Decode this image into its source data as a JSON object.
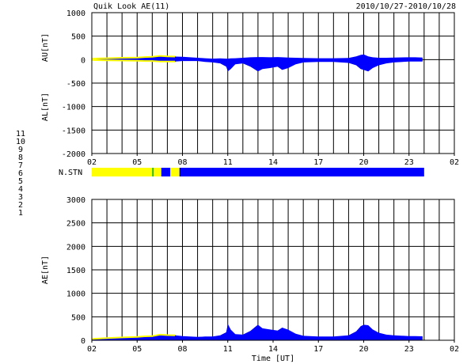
{
  "header": {
    "title": "Quik Look AE(11)",
    "date_range": "2010/10/27-2010/10/28"
  },
  "colors": {
    "foreground": "#000000",
    "background": "#ffffff",
    "fill": "#0000ff",
    "early_trace": "#ffff00",
    "stn_1": "#0000ff",
    "stn_5": "#ffff00",
    "stn_7": "#00c000"
  },
  "legend": {
    "items": [
      {
        "label": "11",
        "color": "#00e0e0"
      },
      {
        "label": "10",
        "color": "#ff00ff"
      },
      {
        "label": "9",
        "color": "#0000ff"
      },
      {
        "label": "8",
        "color": "#ffe060"
      },
      {
        "label": "7",
        "color": "#00c000"
      },
      {
        "label": "6",
        "color": "#ff0000"
      },
      {
        "label": "5",
        "color": "#c0c0c0"
      },
      {
        "label": "4",
        "color": "#808080"
      },
      {
        "label": "3",
        "color": "#008080"
      },
      {
        "label": "2",
        "color": "#800080"
      },
      {
        "label": "1",
        "color": "#0000a0"
      }
    ]
  },
  "chart_data": [
    {
      "type": "area",
      "name": "AU-AL",
      "ylabel_top": "AU[nT]",
      "ylabel_bottom": "AL[nT]",
      "ylim": [
        -2000,
        1000
      ],
      "ytick_values": [
        1000,
        500,
        0,
        -500,
        -1000,
        -1500,
        -2000
      ],
      "ytick_labels": [
        "1000",
        "500",
        "0",
        "-500",
        "-1000",
        "-1500",
        "-2000"
      ],
      "xlim": [
        2,
        26
      ],
      "xtick_labels": [
        "02",
        "05",
        "08",
        "11",
        "14",
        "17",
        "20",
        "23",
        "02"
      ],
      "x": [
        2.0,
        3.0,
        4.0,
        5.0,
        5.5,
        6.0,
        6.5,
        7.0,
        7.5,
        8.0,
        9.0,
        9.5,
        10.0,
        10.5,
        10.9,
        11.0,
        11.2,
        11.5,
        12.0,
        12.5,
        13.0,
        13.3,
        13.8,
        14.3,
        14.6,
        15.0,
        15.5,
        16.0,
        17.0,
        18.0,
        19.0,
        19.5,
        19.8,
        20.0,
        20.3,
        20.6,
        21.0,
        21.5,
        22.0,
        23.0,
        23.4,
        23.9
      ],
      "au": [
        20,
        30,
        40,
        45,
        55,
        60,
        80,
        70,
        65,
        60,
        40,
        30,
        20,
        25,
        20,
        20,
        25,
        30,
        40,
        50,
        55,
        55,
        50,
        55,
        50,
        45,
        40,
        35,
        30,
        30,
        35,
        70,
        100,
        110,
        70,
        50,
        40,
        40,
        45,
        50,
        50,
        45
      ],
      "al": [
        -10,
        -15,
        -20,
        -25,
        -30,
        -30,
        -40,
        -40,
        -40,
        -30,
        -30,
        -50,
        -60,
        -80,
        -150,
        -250,
        -200,
        -100,
        -80,
        -150,
        -250,
        -200,
        -180,
        -150,
        -220,
        -180,
        -100,
        -60,
        -50,
        -50,
        -70,
        -120,
        -200,
        -220,
        -250,
        -180,
        -120,
        -80,
        -60,
        -40,
        -40,
        -40
      ],
      "early_segment_end": 7.5
    },
    {
      "type": "area",
      "name": "AE",
      "ylabel": "AE[nT]",
      "xlabel": "Time [UT]",
      "ylim": [
        0,
        3000
      ],
      "ytick_values": [
        3000,
        2500,
        2000,
        1500,
        1000,
        500,
        0
      ],
      "ytick_labels": [
        "3000",
        "2500",
        "2000",
        "1500",
        "1000",
        "500",
        "0"
      ],
      "xlim": [
        2,
        26
      ],
      "xtick_labels": [
        "02",
        "05",
        "08",
        "11",
        "14",
        "17",
        "20",
        "23",
        "02"
      ],
      "x": [
        2.0,
        3.0,
        4.0,
        5.0,
        5.5,
        6.0,
        6.5,
        7.0,
        7.5,
        8.0,
        9.0,
        9.5,
        10.0,
        10.5,
        10.9,
        11.0,
        11.2,
        11.5,
        12.0,
        12.5,
        12.8,
        13.0,
        13.3,
        13.8,
        14.3,
        14.6,
        15.0,
        15.5,
        16.0,
        17.0,
        18.0,
        19.0,
        19.5,
        19.8,
        20.0,
        20.3,
        20.6,
        21.0,
        21.5,
        22.0,
        23.0,
        23.4,
        23.9
      ],
      "ae": [
        30,
        45,
        60,
        70,
        85,
        90,
        120,
        110,
        105,
        90,
        70,
        80,
        80,
        105,
        170,
        350,
        225,
        130,
        120,
        200,
        280,
        330,
        255,
        230,
        205,
        270,
        225,
        140,
        95,
        80,
        80,
        105,
        190,
        300,
        330,
        320,
        230,
        160,
        120,
        105,
        90,
        90,
        85
      ],
      "early_segment_end": 7.5
    }
  ],
  "station_bar": {
    "label": "N.STN",
    "segments": [
      {
        "start": 2.0,
        "end": 6.0,
        "stations": 5
      },
      {
        "start": 6.0,
        "end": 6.1,
        "stations": 7
      },
      {
        "start": 6.1,
        "end": 6.6,
        "stations": 5
      },
      {
        "start": 6.6,
        "end": 7.2,
        "stations": 1
      },
      {
        "start": 7.2,
        "end": 7.8,
        "stations": 5
      },
      {
        "start": 7.8,
        "end": 24.0,
        "stations": 1
      }
    ]
  }
}
